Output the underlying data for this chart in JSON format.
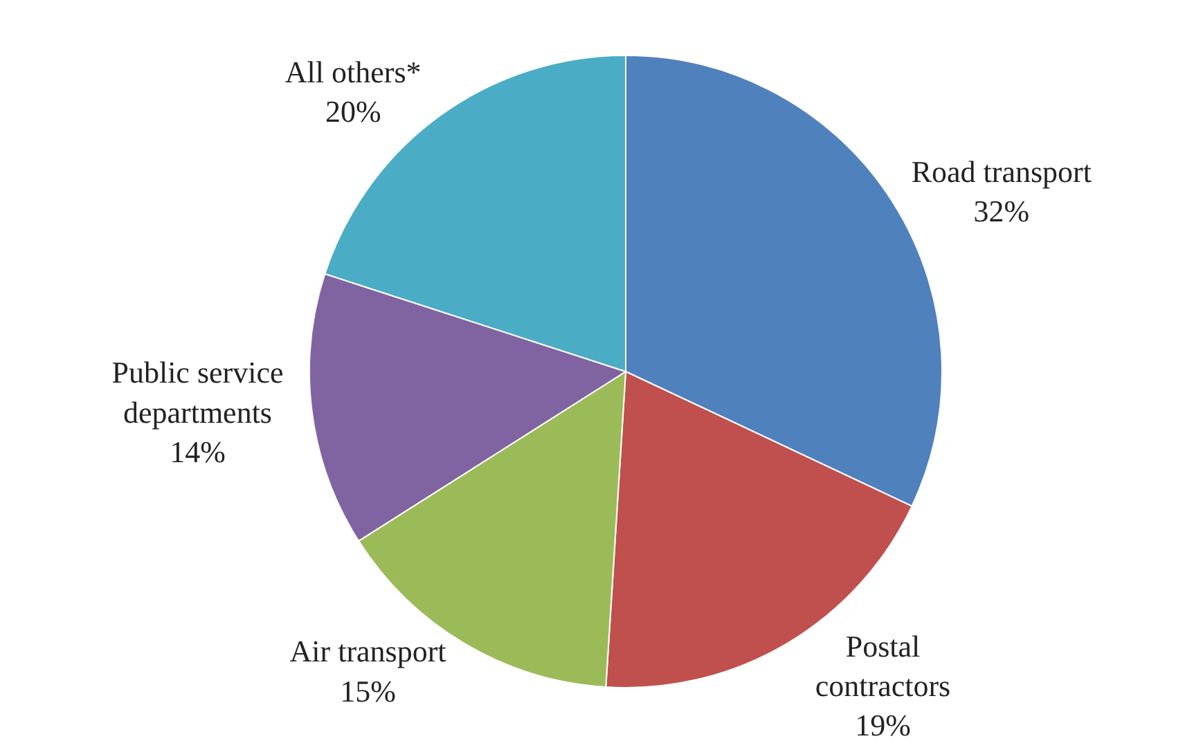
{
  "chart_data": {
    "type": "pie",
    "categories": [
      "Road transport",
      "Postal contractors",
      "Air transport",
      "Public service departments",
      "All others*"
    ],
    "values": [
      32,
      19,
      15,
      14,
      20
    ],
    "value_labels": [
      "32%",
      "19%",
      "15%",
      "14%",
      "20%"
    ],
    "colors": [
      "#4f81bd",
      "#c0504d",
      "#9bbb59",
      "#8064a2",
      "#4bacc6"
    ],
    "legend": false
  }
}
